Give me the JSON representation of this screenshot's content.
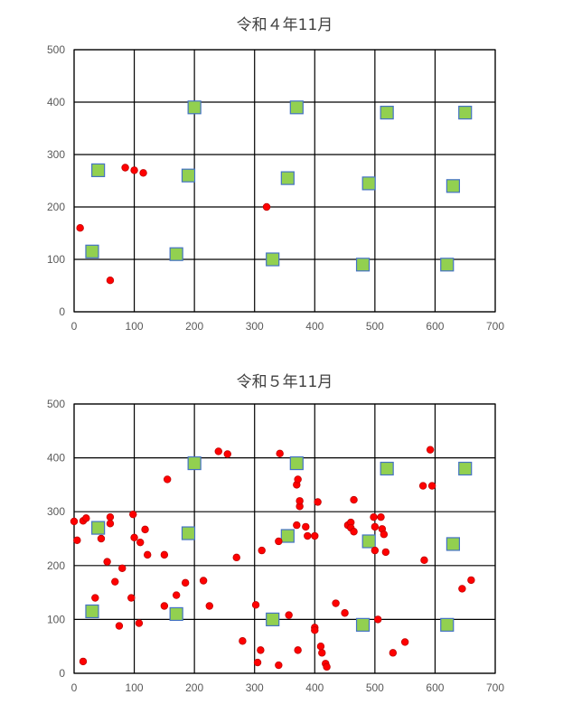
{
  "chart_data": [
    {
      "type": "scatter",
      "title": "令和４年11月",
      "xlim": [
        0,
        700
      ],
      "ylim": [
        0,
        500
      ],
      "x_ticks": [
        "0",
        "100",
        "200",
        "300",
        "400",
        "500",
        "600",
        "700"
      ],
      "y_ticks": [
        "0",
        "100",
        "200",
        "300",
        "400",
        "500"
      ],
      "grid": true,
      "colors": {
        "square_fill": "#92d050",
        "square_edge": "#4472c4",
        "dot_fill": "#ff0000"
      },
      "series": [
        {
          "marker": "square",
          "points": [
            [
              30,
              115
            ],
            [
              40,
              270
            ],
            [
              170,
              110
            ],
            [
              190,
              260
            ],
            [
              200,
              390
            ],
            [
              330,
              100
            ],
            [
              355,
              255
            ],
            [
              370,
              390
            ],
            [
              480,
              90
            ],
            [
              490,
              245
            ],
            [
              520,
              380
            ],
            [
              620,
              90
            ],
            [
              630,
              240
            ],
            [
              650,
              380
            ]
          ]
        },
        {
          "marker": "circle",
          "points": [
            [
              10,
              160
            ],
            [
              60,
              60
            ],
            [
              85,
              275
            ],
            [
              100,
              270
            ],
            [
              115,
              265
            ],
            [
              320,
              200
            ]
          ]
        }
      ]
    },
    {
      "type": "scatter",
      "title": "令和５年11月",
      "xlim": [
        0,
        700
      ],
      "ylim": [
        0,
        500
      ],
      "x_ticks": [
        "0",
        "100",
        "200",
        "300",
        "400",
        "500",
        "600",
        "700"
      ],
      "y_ticks": [
        "0",
        "100",
        "200",
        "300",
        "400",
        "500"
      ],
      "grid": true,
      "colors": {
        "square_fill": "#92d050",
        "square_edge": "#4472c4",
        "dot_fill": "#ff0000"
      },
      "series": [
        {
          "marker": "square",
          "points": [
            [
              30,
              115
            ],
            [
              40,
              270
            ],
            [
              170,
              110
            ],
            [
              190,
              260
            ],
            [
              200,
              390
            ],
            [
              330,
              100
            ],
            [
              355,
              255
            ],
            [
              370,
              390
            ],
            [
              480,
              90
            ],
            [
              490,
              245
            ],
            [
              520,
              380
            ],
            [
              620,
              90
            ],
            [
              630,
              240
            ],
            [
              650,
              380
            ]
          ]
        },
        {
          "marker": "circle",
          "points": [
            [
              0,
              282
            ],
            [
              5,
              247
            ],
            [
              15,
              22
            ],
            [
              15,
              283
            ],
            [
              20,
              288
            ],
            [
              35,
              140
            ],
            [
              45,
              250
            ],
            [
              55,
              207
            ],
            [
              60,
              290
            ],
            [
              60,
              278
            ],
            [
              68,
              170
            ],
            [
              75,
              88
            ],
            [
              80,
              195
            ],
            [
              95,
              140
            ],
            [
              98,
              295
            ],
            [
              100,
              252
            ],
            [
              108,
              93
            ],
            [
              110,
              243
            ],
            [
              118,
              267
            ],
            [
              122,
              220
            ],
            [
              150,
              220
            ],
            [
              150,
              125
            ],
            [
              155,
              360
            ],
            [
              170,
              145
            ],
            [
              185,
              168
            ],
            [
              215,
              172
            ],
            [
              225,
              125
            ],
            [
              240,
              412
            ],
            [
              255,
              407
            ],
            [
              270,
              215
            ],
            [
              280,
              60
            ],
            [
              302,
              127
            ],
            [
              305,
              20
            ],
            [
              310,
              43
            ],
            [
              312,
              228
            ],
            [
              340,
              15
            ],
            [
              340,
              245
            ],
            [
              342,
              408
            ],
            [
              357,
              108
            ],
            [
              370,
              275
            ],
            [
              370,
              350
            ],
            [
              372,
              360
            ],
            [
              372,
              43
            ],
            [
              375,
              310
            ],
            [
              375,
              320
            ],
            [
              385,
              272
            ],
            [
              388,
              255
            ],
            [
              400,
              85
            ],
            [
              400,
              80
            ],
            [
              400,
              255
            ],
            [
              405,
              318
            ],
            [
              410,
              50
            ],
            [
              412,
              38
            ],
            [
              418,
              18
            ],
            [
              420,
              12
            ],
            [
              435,
              130
            ],
            [
              450,
              112
            ],
            [
              455,
              275
            ],
            [
              460,
              280
            ],
            [
              460,
              270
            ],
            [
              465,
              263
            ],
            [
              465,
              322
            ],
            [
              498,
              290
            ],
            [
              500,
              228
            ],
            [
              500,
              272
            ],
            [
              505,
              100
            ],
            [
              510,
              290
            ],
            [
              512,
              268
            ],
            [
              515,
              258
            ],
            [
              518,
              225
            ],
            [
              530,
              38
            ],
            [
              550,
              58
            ],
            [
              580,
              348
            ],
            [
              582,
              210
            ],
            [
              592,
              415
            ],
            [
              595,
              348
            ],
            [
              645,
              157
            ],
            [
              660,
              173
            ]
          ]
        }
      ]
    }
  ]
}
